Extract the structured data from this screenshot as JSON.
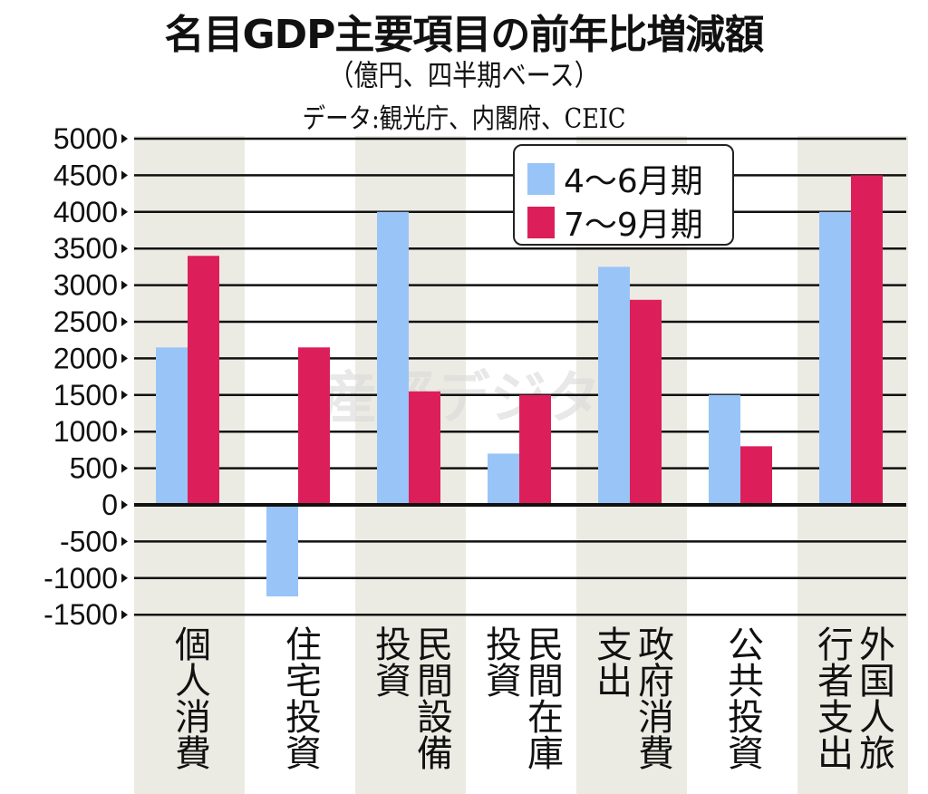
{
  "title": "名目GDP主要項目の前年比増減額",
  "subtitle": "（億円、四半期ベース）",
  "source": "データ:観光庁、内閣府、CEIC",
  "watermark": "産經デジタル",
  "chart_data": {
    "type": "bar",
    "title": "名目GDP主要項目の前年比増減額",
    "ylabel": "",
    "ylim": [
      -1500,
      5000
    ],
    "yticks": [
      5000,
      4500,
      4000,
      3500,
      3000,
      2500,
      2000,
      1500,
      1000,
      500,
      0,
      -500,
      -1000,
      -1500
    ],
    "grid": true,
    "legend_position": "top-right",
    "categories": [
      "個人消費",
      "住宅投資",
      "民間設備投資",
      "民間在庫",
      "政府消費支出",
      "公共投資",
      "外国人旅行者支出"
    ],
    "category_lines": [
      [
        "個人消費"
      ],
      [
        "住宅投資"
      ],
      [
        "民間設備",
        "投資"
      ],
      [
        "民間在庫",
        "投資"
      ],
      [
        "政府消費",
        "支出"
      ],
      [
        "公共投資"
      ],
      [
        "外国人旅",
        "行者支出"
      ]
    ],
    "series": [
      {
        "name": "4〜6月期",
        "color": "#99c4f8",
        "values": [
          2150,
          -1250,
          4000,
          700,
          3250,
          1500,
          4000
        ]
      },
      {
        "name": "7〜9月期",
        "color": "#dc1f5a",
        "values": [
          3400,
          2150,
          1550,
          1500,
          2800,
          800,
          4500
        ]
      }
    ],
    "stripe_color": "#ecebe3"
  }
}
